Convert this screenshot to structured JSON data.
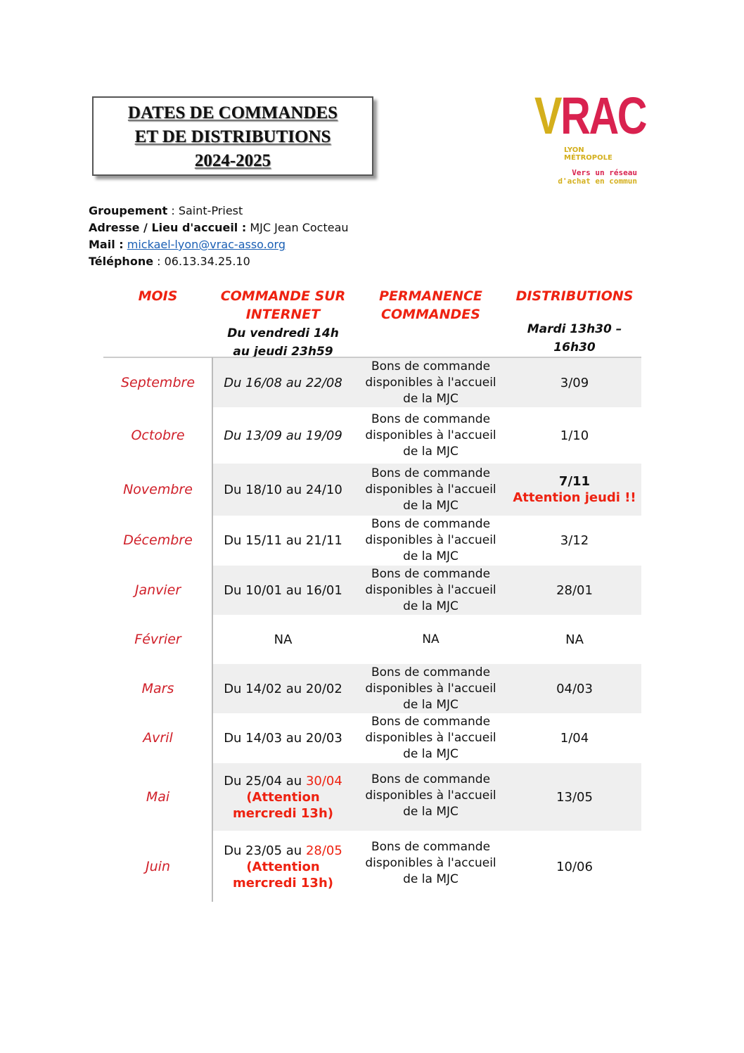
{
  "title": [
    "DATES DE COMMANDES",
    "ET DE DISTRIBUTIONS",
    "2024-2025"
  ],
  "logo": {
    "letters": "VRAC",
    "city": [
      "LYON",
      "MÉTROPOLE"
    ],
    "tagline": [
      "Vers un réseau",
      "d'achat en commun"
    ],
    "colors": {
      "yellow": "#d4af1c",
      "red": "#d9224f"
    }
  },
  "info": {
    "groupement_label": "Groupement",
    "groupement": "Saint-Priest",
    "adresse_label": "Adresse / Lieu d'accueil :",
    "adresse": "MJC Jean Cocteau",
    "mail_label": "Mail :",
    "mail": "mickael-lyon@vrac-asso.org",
    "tel_label": "Téléphone",
    "tel": "06.13.34.25.10"
  },
  "headers": {
    "mois": "MOIS",
    "commande": [
      "COMMANDE SUR",
      "INTERNET"
    ],
    "commande_sub": [
      "Du vendredi 14h",
      "au jeudi 23h59"
    ],
    "permanence": [
      "PERMANENCE",
      "COMMANDES"
    ],
    "distributions": "DISTRIBUTIONS",
    "distributions_sub": [
      "Mardi 13h30 –",
      "16h30"
    ]
  },
  "rows": [
    {
      "mois": "Septembre",
      "order": "Du 16/08 au 22/08",
      "order_red": "",
      "note": "",
      "perm": [
        "Bons de commande",
        "disponibles à l'accueil",
        "de la MJC"
      ],
      "dist": "3/09",
      "dist_note": ""
    },
    {
      "mois": "Octobre",
      "order": "Du 13/09 au 19/09",
      "order_red": "",
      "note": "",
      "perm": [
        "Bons de commande",
        "disponibles à l'accueil",
        "de la MJC"
      ],
      "dist": "1/10",
      "dist_note": ""
    },
    {
      "mois": "Novembre",
      "order": "Du 18/10 au 24/10",
      "order_red": "",
      "note": "",
      "perm": [
        "Bons de commande",
        "disponibles à l'accueil",
        "de la MJC"
      ],
      "dist": "7/11",
      "dist_note": "Attention jeudi !!"
    },
    {
      "mois": "Décembre",
      "order": "Du 15/11 au 21/11",
      "order_red": "",
      "note": "",
      "perm": [
        "Bons de commande",
        "disponibles à l'accueil",
        "de la MJC"
      ],
      "dist": "3/12",
      "dist_note": ""
    },
    {
      "mois": "Janvier",
      "order": "Du 10/01 au 16/01",
      "order_red": "",
      "note": "",
      "perm": [
        "Bons de commande",
        "disponibles à l'accueil",
        "de la MJC"
      ],
      "dist": "28/01",
      "dist_note": ""
    },
    {
      "mois": "Février",
      "order": "NA",
      "order_red": "",
      "note": "",
      "perm": [
        "NA",
        "",
        ""
      ],
      "dist": "NA",
      "dist_note": ""
    },
    {
      "mois": "Mars",
      "order": "Du 14/02 au 20/02",
      "order_red": "",
      "note": "",
      "perm": [
        "Bons de commande",
        "disponibles à l'accueil",
        "de la MJC"
      ],
      "dist": "04/03",
      "dist_note": ""
    },
    {
      "mois": "Avril",
      "order": "Du 14/03 au 20/03",
      "order_red": "",
      "note": "",
      "perm": [
        "Bons de commande",
        "disponibles à l'accueil",
        "de la MJC"
      ],
      "dist": "1/04",
      "dist_note": ""
    },
    {
      "mois": "Mai",
      "order": "Du 25/04 au ",
      "order_red": "30/04",
      "note": "(Attention mercredi 13h)",
      "perm": [
        "Bons de commande",
        "disponibles à l'accueil",
        "de la MJC"
      ],
      "dist": "13/05",
      "dist_note": ""
    },
    {
      "mois": "Juin",
      "order": "Du 23/05 au ",
      "order_red": "28/05",
      "note": "(Attention mercredi 13h)",
      "perm": [
        "Bons de commande",
        "disponibles à l'accueil",
        "de la MJC"
      ],
      "dist": "10/06",
      "dist_note": ""
    }
  ]
}
